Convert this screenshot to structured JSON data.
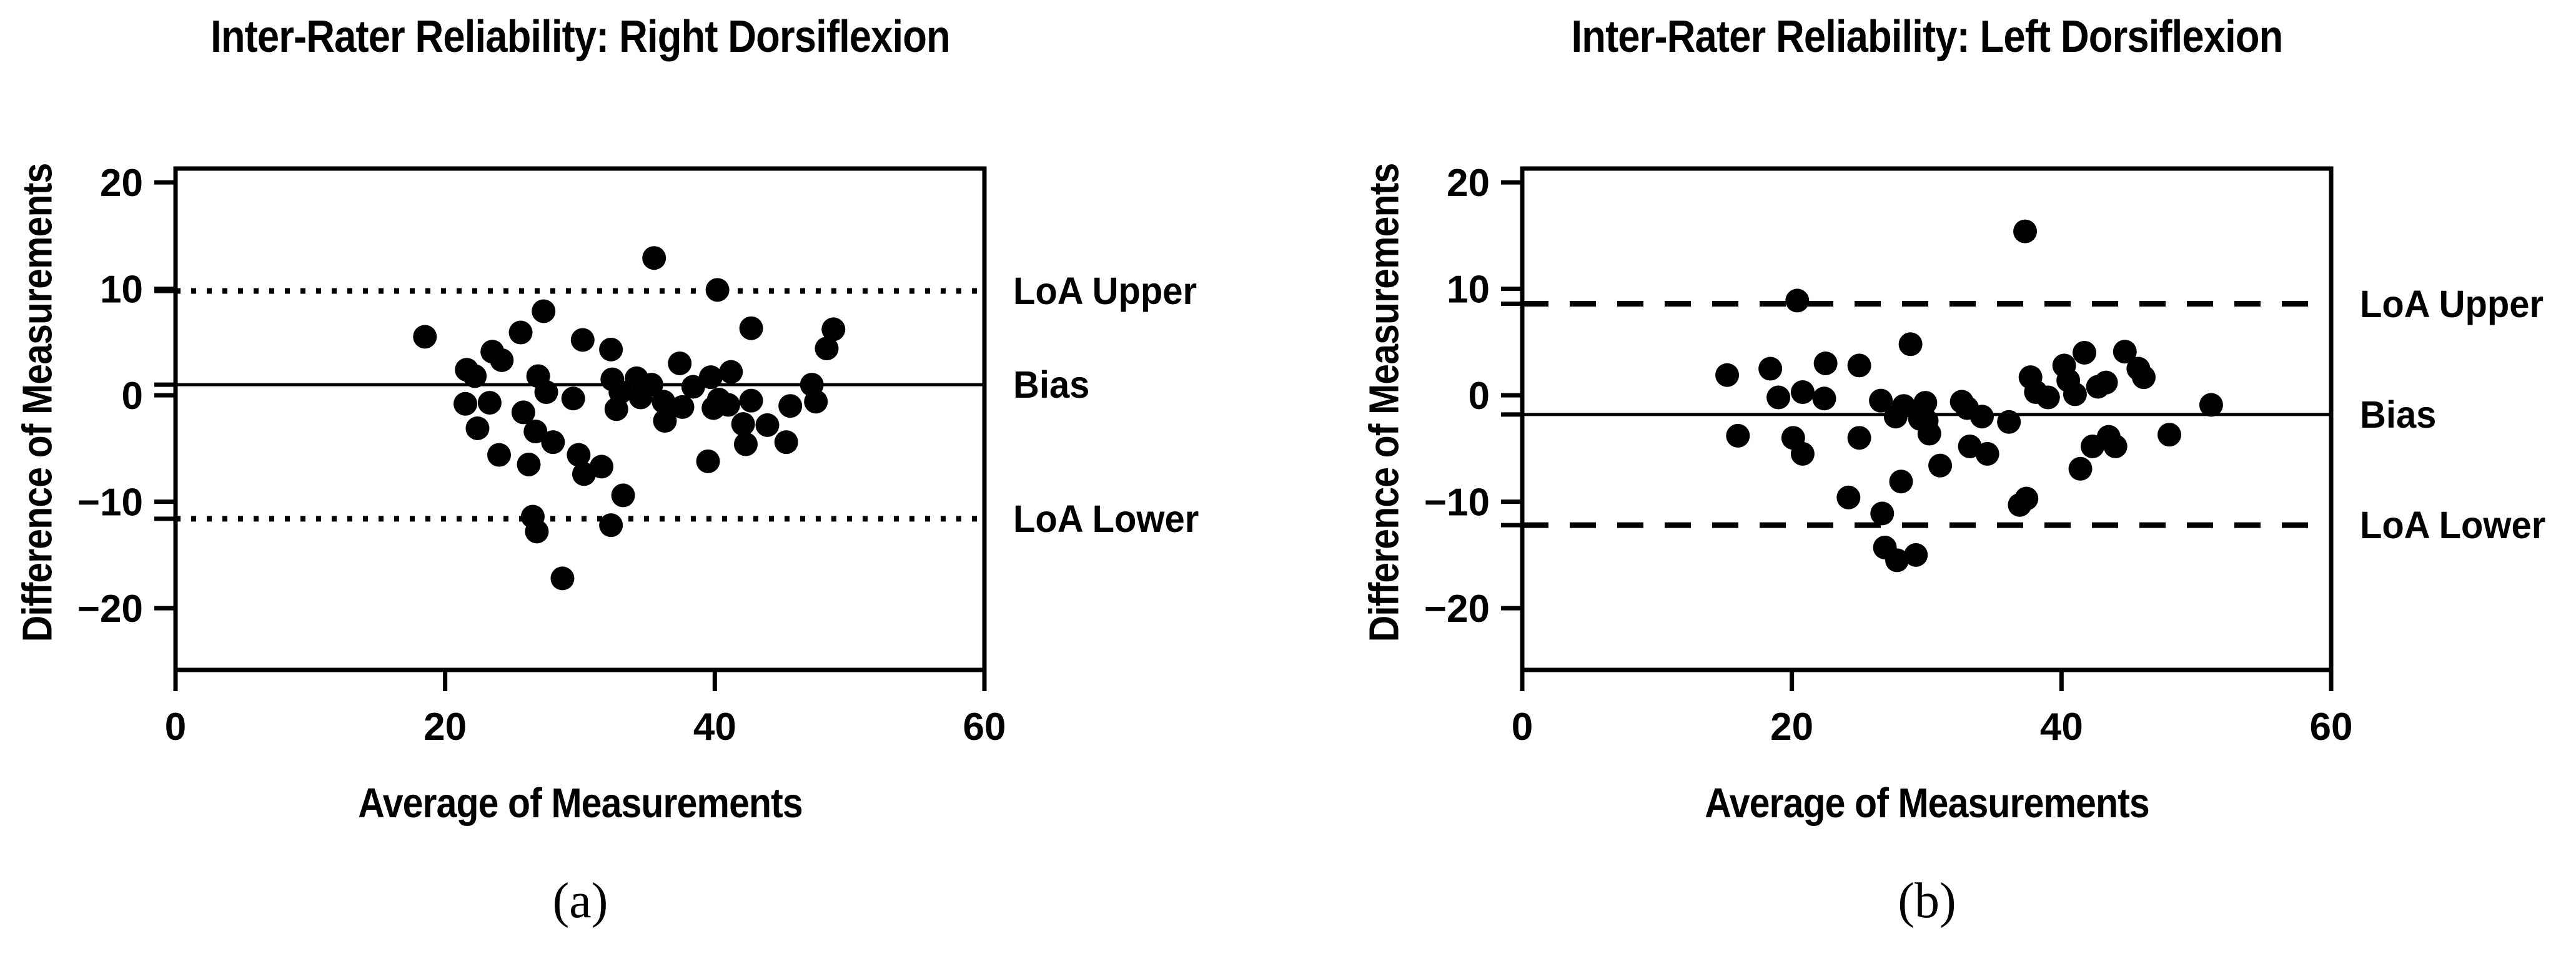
{
  "figure": {
    "background": "#ffffff",
    "ink_color": "#000000",
    "marker_color": "#000000"
  },
  "chart_data": [
    {
      "panel": "a",
      "type": "scatter",
      "title": "Inter-Rater Reliability: Right Dorsiflexion",
      "xlabel": "Average of Measurements",
      "ylabel": "Difference of Measurements",
      "caption": "(a)",
      "xlim": [
        0,
        60
      ],
      "ylim": [
        -25.8,
        21.3
      ],
      "xticks": [
        0,
        20,
        40,
        60
      ],
      "yticks": [
        20,
        10,
        0,
        -10,
        -20
      ],
      "grid": false,
      "legend": "none",
      "marker": {
        "shape": "circle",
        "color": "#000000"
      },
      "lines": [
        {
          "label": "LoA Upper",
          "y": 9.8,
          "style": "dotted"
        },
        {
          "label": "Bias",
          "y": 1.0,
          "style": "solid"
        },
        {
          "label": "LoA Lower",
          "y": -11.6,
          "style": "dotted"
        }
      ],
      "points": [
        [
          18.5,
          5.5
        ],
        [
          21.5,
          -0.8
        ],
        [
          21.6,
          2.4
        ],
        [
          22.2,
          1.8
        ],
        [
          22.4,
          -3.1
        ],
        [
          23.3,
          -0.7
        ],
        [
          23.5,
          4.1
        ],
        [
          24.0,
          -5.6
        ],
        [
          24.2,
          3.3
        ],
        [
          25.6,
          5.9
        ],
        [
          25.8,
          -1.6
        ],
        [
          26.2,
          -6.5
        ],
        [
          26.5,
          -11.4
        ],
        [
          26.7,
          -3.4
        ],
        [
          26.8,
          -12.8
        ],
        [
          26.9,
          1.8
        ],
        [
          27.3,
          7.9
        ],
        [
          27.5,
          0.3
        ],
        [
          28.0,
          -4.4
        ],
        [
          28.7,
          -17.2
        ],
        [
          29.5,
          -0.3
        ],
        [
          29.9,
          -5.6
        ],
        [
          30.2,
          5.2
        ],
        [
          30.3,
          -7.4
        ],
        [
          31.6,
          -6.7
        ],
        [
          32.3,
          4.3
        ],
        [
          32.3,
          -12.2
        ],
        [
          32.4,
          1.5
        ],
        [
          32.7,
          -1.3
        ],
        [
          33.0,
          0.3
        ],
        [
          33.2,
          -9.4
        ],
        [
          34.2,
          1.6
        ],
        [
          34.5,
          -0.2
        ],
        [
          35.3,
          1.0
        ],
        [
          35.5,
          12.9
        ],
        [
          36.2,
          -0.6
        ],
        [
          36.3,
          -2.4
        ],
        [
          37.4,
          3.0
        ],
        [
          37.6,
          -1.1
        ],
        [
          38.4,
          0.8
        ],
        [
          39.5,
          -6.2
        ],
        [
          39.7,
          1.7
        ],
        [
          39.9,
          -1.2
        ],
        [
          40.2,
          9.9
        ],
        [
          40.3,
          -0.4
        ],
        [
          41.0,
          -0.9
        ],
        [
          41.2,
          2.2
        ],
        [
          42.1,
          -2.7
        ],
        [
          42.3,
          -4.6
        ],
        [
          42.7,
          -0.5
        ],
        [
          42.7,
          6.3
        ],
        [
          43.9,
          -2.8
        ],
        [
          45.3,
          -4.4
        ],
        [
          45.6,
          -1.0
        ],
        [
          47.2,
          1.0
        ],
        [
          47.5,
          -0.6
        ],
        [
          48.3,
          4.4
        ],
        [
          48.8,
          6.2
        ]
      ]
    },
    {
      "panel": "b",
      "type": "scatter",
      "title": "Inter-Rater Reliability: Left Dorsiflexion",
      "xlabel": "Average of Measurements",
      "ylabel": "Difference of Measurements",
      "caption": "(b)",
      "xlim": [
        0,
        60
      ],
      "ylim": [
        -25.8,
        21.3
      ],
      "xticks": [
        0,
        20,
        40,
        60
      ],
      "yticks": [
        20,
        10,
        0,
        -10,
        -20
      ],
      "grid": false,
      "legend": "none",
      "marker": {
        "shape": "circle",
        "color": "#000000"
      },
      "lines": [
        {
          "label": "LoA Upper",
          "y": 8.6,
          "style": "dashed"
        },
        {
          "label": "Bias",
          "y": -1.8,
          "style": "solid"
        },
        {
          "label": "LoA Lower",
          "y": -12.2,
          "style": "dashed"
        }
      ],
      "points": [
        [
          15.2,
          1.9
        ],
        [
          16.0,
          -3.8
        ],
        [
          18.4,
          2.5
        ],
        [
          19.0,
          -0.2
        ],
        [
          20.4,
          8.9
        ],
        [
          20.1,
          -4.0
        ],
        [
          20.8,
          0.3
        ],
        [
          20.8,
          -5.5
        ],
        [
          22.4,
          -0.3
        ],
        [
          22.5,
          3.0
        ],
        [
          24.2,
          -9.6
        ],
        [
          25.0,
          -4.0
        ],
        [
          25.0,
          2.8
        ],
        [
          26.7,
          -11.1
        ],
        [
          26.9,
          -14.3
        ],
        [
          26.6,
          -0.5
        ],
        [
          27.8,
          -15.5
        ],
        [
          28.3,
          -1.0
        ],
        [
          27.7,
          -2.0
        ],
        [
          29.2,
          -15.0
        ],
        [
          28.1,
          -8.1
        ],
        [
          29.5,
          -2.2
        ],
        [
          28.8,
          4.8
        ],
        [
          31.0,
          -6.6
        ],
        [
          29.9,
          -0.7
        ],
        [
          30.0,
          -2.4
        ],
        [
          30.2,
          -3.6
        ],
        [
          32.6,
          -0.6
        ],
        [
          33.0,
          -1.2
        ],
        [
          33.2,
          -4.8
        ],
        [
          34.1,
          -2.0
        ],
        [
          34.5,
          -5.5
        ],
        [
          36.1,
          -2.5
        ],
        [
          36.9,
          -10.3
        ],
        [
          37.3,
          15.4
        ],
        [
          37.4,
          -9.7
        ],
        [
          37.7,
          1.7
        ],
        [
          38.1,
          0.3
        ],
        [
          39.0,
          -0.2
        ],
        [
          40.2,
          2.8
        ],
        [
          40.5,
          1.4
        ],
        [
          41.0,
          0.1
        ],
        [
          41.4,
          -6.9
        ],
        [
          41.7,
          4.0
        ],
        [
          42.3,
          -4.8
        ],
        [
          42.7,
          0.8
        ],
        [
          43.3,
          1.2
        ],
        [
          43.5,
          -3.9
        ],
        [
          44.0,
          -4.8
        ],
        [
          44.7,
          4.1
        ],
        [
          45.7,
          2.5
        ],
        [
          46.1,
          1.7
        ],
        [
          48.0,
          -3.7
        ],
        [
          51.1,
          -0.9
        ]
      ]
    }
  ]
}
